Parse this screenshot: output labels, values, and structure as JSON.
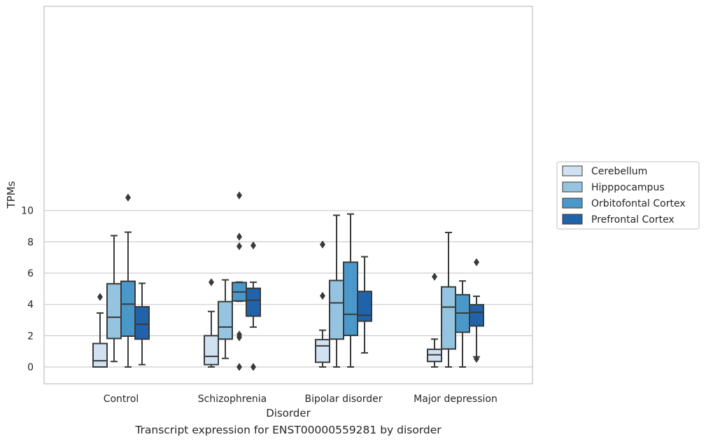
{
  "caption": "Transcript expression for ENST00000559281 by disorder",
  "chart_data": {
    "type": "boxplot",
    "xlabel": "Disorder",
    "ylabel": "TPMs",
    "ylim": [
      -0.5,
      11.5
    ],
    "yticks": [
      0,
      2,
      4,
      6,
      8,
      10
    ],
    "grid": true,
    "legend_position": "center-right",
    "categories": [
      "Control",
      "Schizophrenia",
      "Bipolar disorder",
      "Major depression"
    ],
    "series": [
      {
        "name": "Cerebellum",
        "color": "#d0e1f2",
        "boxes": [
          {
            "whislo": 0.0,
            "q1": 0.0,
            "med": 0.4,
            "q3": 1.5,
            "whishi": 3.45,
            "fliers": [
              4.48
            ]
          },
          {
            "whislo": 0.0,
            "q1": 0.15,
            "med": 0.68,
            "q3": 2.0,
            "whishi": 3.55,
            "fliers": [
              5.42
            ]
          },
          {
            "whislo": 0.0,
            "q1": 0.3,
            "med": 1.35,
            "q3": 1.75,
            "whishi": 2.35,
            "fliers": [
              4.55,
              7.83
            ]
          },
          {
            "whislo": 0.0,
            "q1": 0.35,
            "med": 0.78,
            "q3": 1.13,
            "whishi": 1.78,
            "fliers": [
              5.77
            ]
          }
        ]
      },
      {
        "name": "Hipppocampus",
        "color": "#94c4df",
        "boxes": [
          {
            "whislo": 0.35,
            "q1": 1.82,
            "med": 3.18,
            "q3": 5.32,
            "whishi": 8.4,
            "fliers": []
          },
          {
            "whislo": 0.55,
            "q1": 1.78,
            "med": 2.55,
            "q3": 4.18,
            "whishi": 5.57,
            "fliers": []
          },
          {
            "whislo": 0.0,
            "q1": 1.78,
            "med": 4.1,
            "q3": 5.53,
            "whishi": 9.7,
            "fliers": []
          },
          {
            "whislo": 0.0,
            "q1": 1.15,
            "med": 3.83,
            "q3": 5.12,
            "whishi": 8.6,
            "fliers": []
          }
        ]
      },
      {
        "name": "Orbitofontal Cortex",
        "color": "#4a98c9",
        "boxes": [
          {
            "whislo": 0.0,
            "q1": 1.97,
            "med": 4.02,
            "q3": 5.48,
            "whishi": 8.62,
            "fliers": [
              10.83
            ]
          },
          {
            "whislo": 4.2,
            "q1": 4.22,
            "med": 4.8,
            "q3": 5.4,
            "whishi": 5.43,
            "fliers": [
              0.0,
              1.9,
              2.07,
              7.72,
              8.33,
              10.97
            ]
          },
          {
            "whislo": 0.0,
            "q1": 2.02,
            "med": 3.37,
            "q3": 6.7,
            "whishi": 9.78,
            "fliers": []
          },
          {
            "whislo": 0.0,
            "q1": 2.22,
            "med": 3.45,
            "q3": 4.62,
            "whishi": 5.5,
            "fliers": []
          }
        ]
      },
      {
        "name": "Prefrontal Cortex",
        "color": "#2163aa",
        "boxes": [
          {
            "whislo": 0.15,
            "q1": 1.78,
            "med": 2.73,
            "q3": 3.85,
            "whishi": 5.35,
            "fliers": []
          },
          {
            "whislo": 2.55,
            "q1": 3.25,
            "med": 4.27,
            "q3": 5.03,
            "whishi": 5.42,
            "fliers": [
              0.0,
              7.77
            ]
          },
          {
            "whislo": 0.9,
            "q1": 2.93,
            "med": 3.3,
            "q3": 4.83,
            "whishi": 7.05,
            "fliers": []
          },
          {
            "whislo": 0.65,
            "q1": 2.62,
            "med": 3.5,
            "q3": 3.98,
            "whishi": 4.52,
            "fliers": [
              0.52,
              6.7
            ]
          }
        ]
      }
    ]
  }
}
